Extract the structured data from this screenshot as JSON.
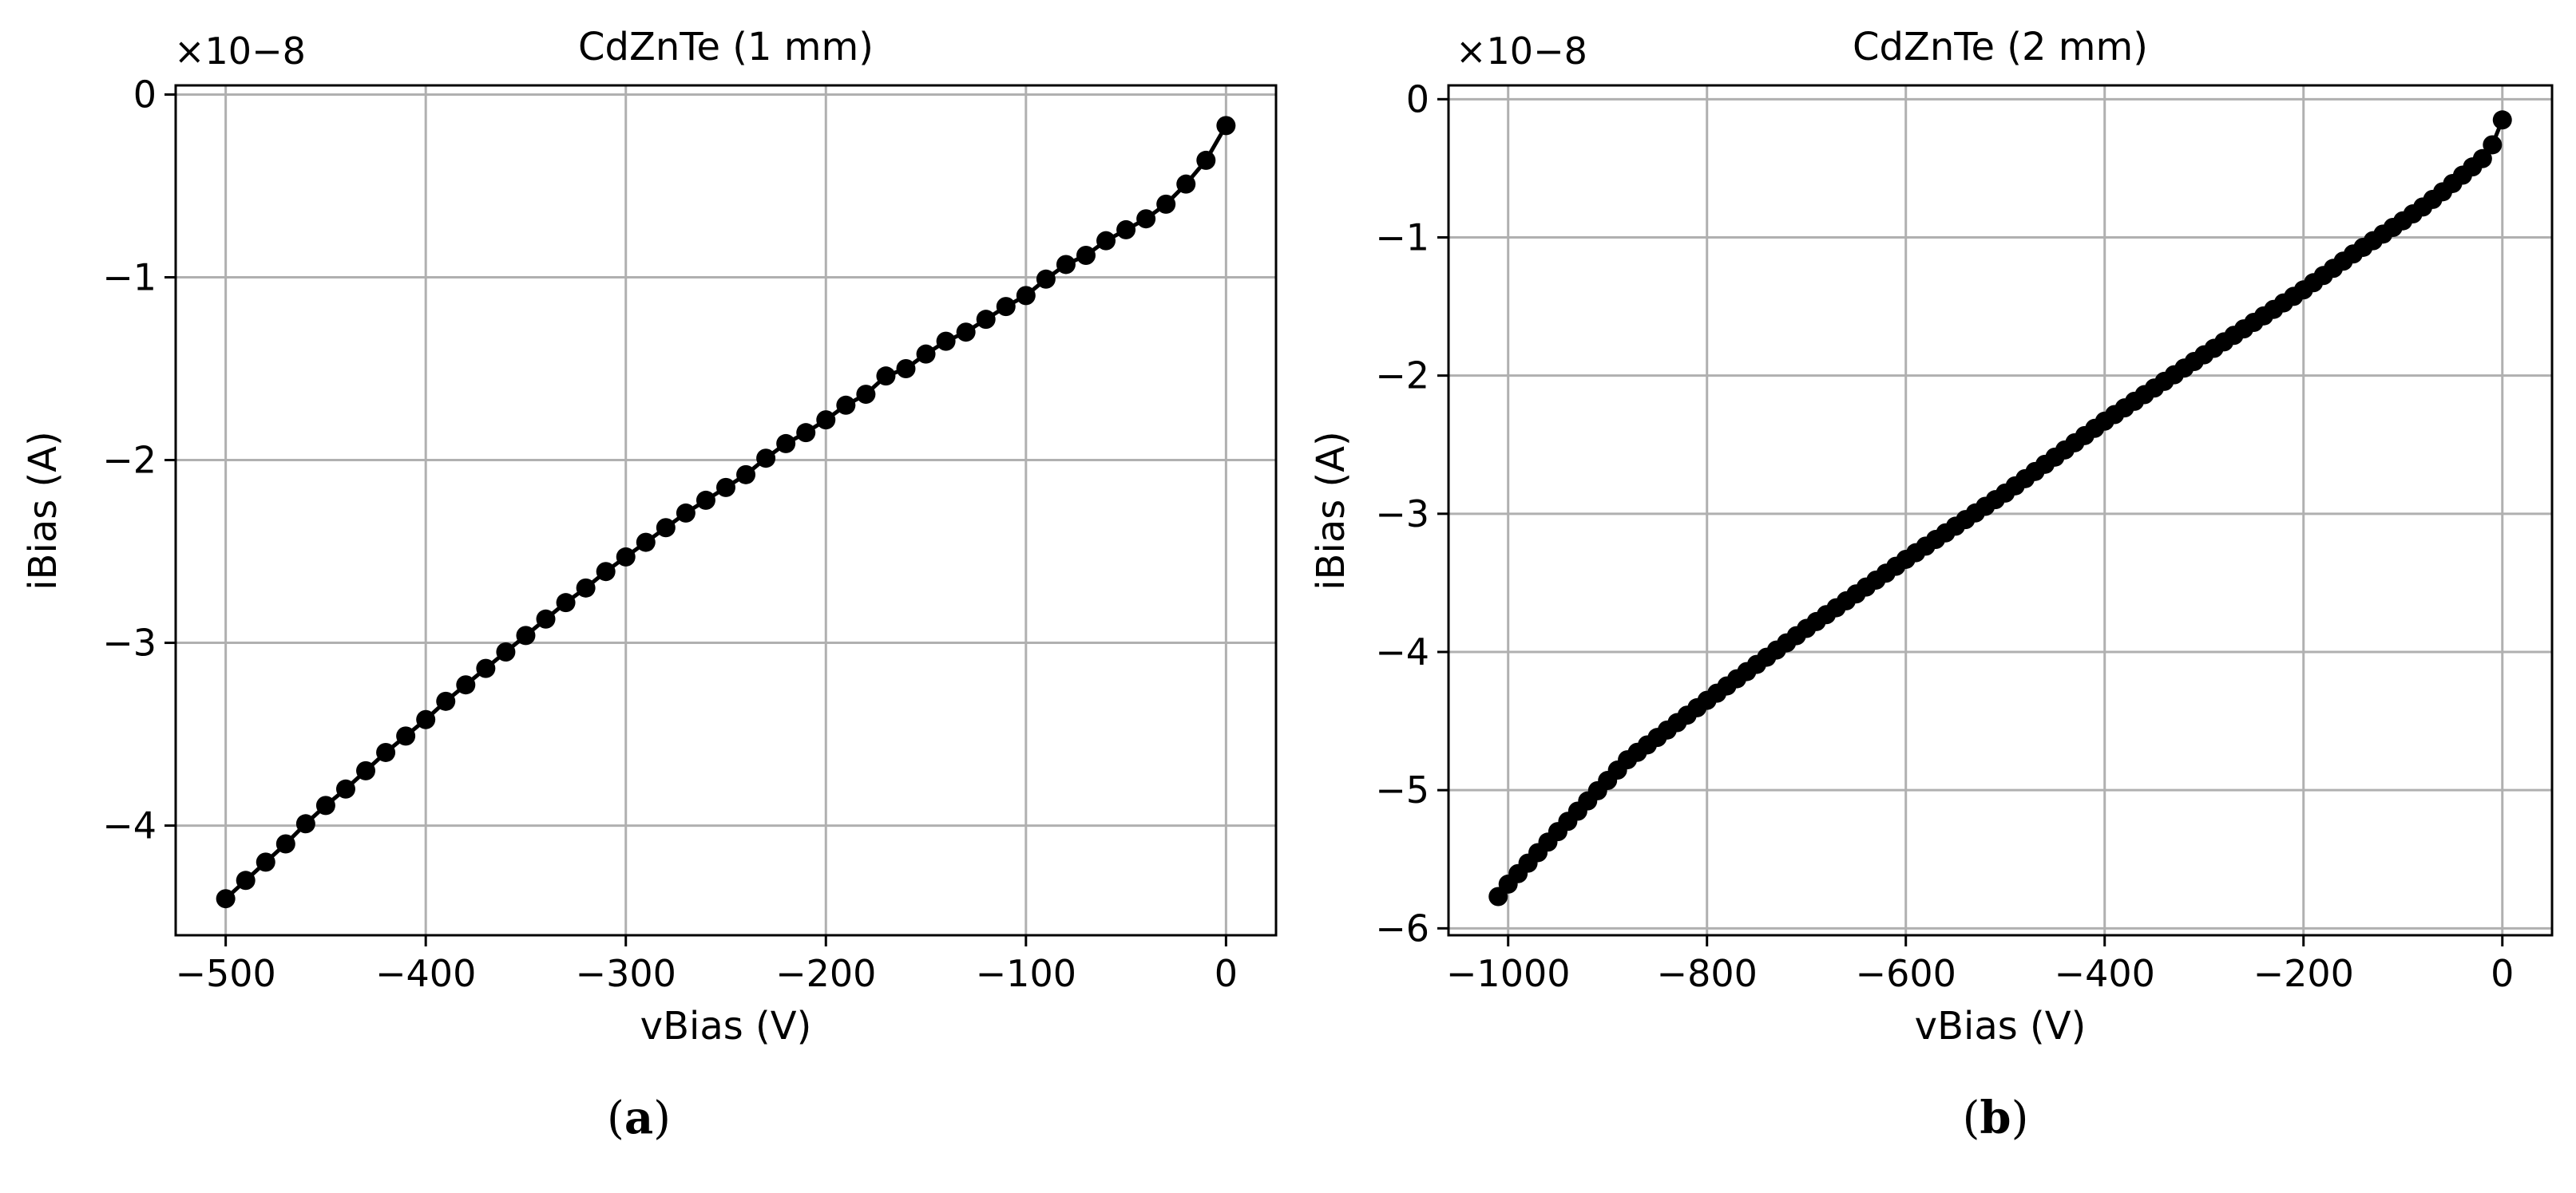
{
  "chart_data": [
    {
      "type": "line",
      "title": "CdZnTe (1 mm)",
      "xlabel": "vBias (V)",
      "ylabel": "iBias (A)",
      "xlim": [
        -525,
        25
      ],
      "ylim": [
        -4.6,
        0.05
      ],
      "y_scale_exponent": "×10−8",
      "xticks": [
        -500,
        -400,
        -300,
        -200,
        -100,
        0
      ],
      "xtick_labels": [
        "−500",
        "−400",
        "−300",
        "−200",
        "−100",
        "0"
      ],
      "yticks": [
        0,
        -1,
        -2,
        -3,
        -4
      ],
      "ytick_labels": [
        "0",
        "−1",
        "−2",
        "−3",
        "−4"
      ],
      "grid": true,
      "marker_color": "#000000",
      "series": [
        {
          "name": "CdZnTe (1 mm)",
          "x": [
            0,
            -10,
            -20,
            -30,
            -40,
            -50,
            -60,
            -70,
            -80,
            -90,
            -100,
            -110,
            -120,
            -130,
            -140,
            -150,
            -160,
            -170,
            -180,
            -190,
            -200,
            -210,
            -220,
            -230,
            -240,
            -250,
            -260,
            -270,
            -280,
            -290,
            -300,
            -310,
            -320,
            -330,
            -340,
            -350,
            -360,
            -370,
            -380,
            -390,
            -400,
            -410,
            -420,
            -430,
            -440,
            -450,
            -460,
            -470,
            -480,
            -490,
            -500
          ],
          "y": [
            -0.17,
            -0.36,
            -0.49,
            -0.6,
            -0.68,
            -0.74,
            -0.8,
            -0.88,
            -0.93,
            -1.01,
            -1.1,
            -1.16,
            -1.23,
            -1.3,
            -1.35,
            -1.42,
            -1.5,
            -1.54,
            -1.64,
            -1.7,
            -1.78,
            -1.85,
            -1.91,
            -1.99,
            -2.08,
            -2.15,
            -2.22,
            -2.29,
            -2.37,
            -2.45,
            -2.53,
            -2.61,
            -2.7,
            -2.78,
            -2.87,
            -2.96,
            -3.05,
            -3.14,
            -3.23,
            -3.32,
            -3.42,
            -3.51,
            -3.6,
            -3.7,
            -3.8,
            -3.89,
            -3.99,
            -4.1,
            -4.2,
            -4.3,
            -4.4
          ]
        }
      ],
      "panel_label": "a"
    },
    {
      "type": "line",
      "title": "CdZnTe (2 mm)",
      "xlabel": "vBias (V)",
      "ylabel": "iBias (A)",
      "xlim": [
        -1060,
        50
      ],
      "ylim": [
        -6.05,
        0.1
      ],
      "y_scale_exponent": "×10−8",
      "xticks": [
        -1000,
        -800,
        -600,
        -400,
        -200,
        0
      ],
      "xtick_labels": [
        "−1000",
        "−800",
        "−600",
        "−400",
        "−200",
        "0"
      ],
      "yticks": [
        0,
        -1,
        -2,
        -3,
        -4,
        -5,
        -6
      ],
      "ytick_labels": [
        "0",
        "−1",
        "−2",
        "−3",
        "−4",
        "−5",
        "−6"
      ],
      "grid": true,
      "marker_color": "#000000",
      "series": [
        {
          "name": "CdZnTe (2 mm)",
          "anchors_x": [
            0,
            -10,
            -20,
            -40,
            -60,
            -80,
            -100,
            -150,
            -200,
            -300,
            -400,
            -500,
            -600,
            -700,
            -800,
            -880,
            -900,
            -950,
            -1000,
            -1010
          ],
          "anchors_y": [
            -0.15,
            -0.33,
            -0.43,
            -0.55,
            -0.67,
            -0.78,
            -0.88,
            -1.12,
            -1.38,
            -1.85,
            -2.33,
            -2.85,
            -3.33,
            -3.83,
            -4.35,
            -4.78,
            -4.93,
            -5.3,
            -5.68,
            -5.77
          ],
          "sampling_step": 10
        }
      ],
      "panel_label": "b"
    }
  ]
}
